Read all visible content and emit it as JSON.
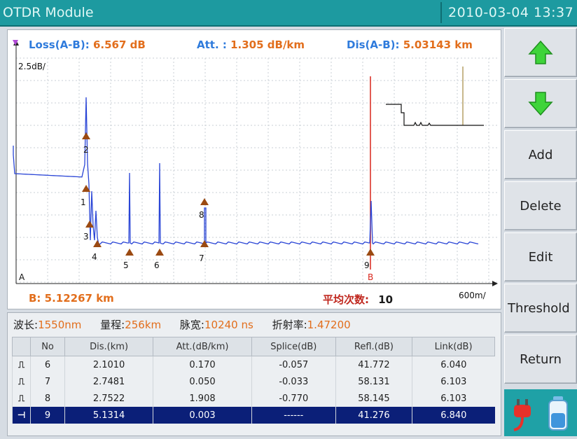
{
  "titlebar": {
    "title": "OTDR Module",
    "datetime": "2010-03-04  13:37"
  },
  "measure": {
    "loss_label": "Loss(A-B):",
    "loss_value": "6.567 dB",
    "att_label": "Att.  :",
    "att_value": "1.305 dB/km",
    "dis_label": "Dis(A-B):",
    "dis_value": "5.03143 km"
  },
  "scale": {
    "y": "2.5dB/",
    "x": "600m/"
  },
  "cursor": {
    "a_label": "A",
    "b_label": "B",
    "b_readout": "B:   5.12267   km"
  },
  "average": {
    "label": "平均次数:",
    "value": "10"
  },
  "markers": [
    "2",
    "1",
    "3",
    "4",
    "5",
    "6",
    "7",
    "8",
    "9"
  ],
  "params": {
    "wave_label": "波长:",
    "wave_value": "1550nm",
    "range_label": "量程:",
    "range_value": "256km",
    "pulse_label": "脉宽:",
    "pulse_value": "10240 ns",
    "ior_label": "折射率:",
    "ior_value": "1.47200"
  },
  "table": {
    "columns": [
      "",
      "No",
      "Dis.(km)",
      "Att.(dB/km)",
      "Splice(dB)",
      "Refl.(dB)",
      "Link(dB)"
    ],
    "rows": [
      {
        "icon": "⎍",
        "no": "6",
        "dis": "2.1010",
        "att": "0.170",
        "splice": "-0.057",
        "refl": "41.772",
        "link": "6.040"
      },
      {
        "icon": "⎍",
        "no": "7",
        "dis": "2.7481",
        "att": "0.050",
        "splice": "-0.033",
        "refl": "58.131",
        "link": "6.103"
      },
      {
        "icon": "⎍",
        "no": "8",
        "dis": "2.7522",
        "att": "1.908",
        "splice": "-0.770",
        "refl": "58.145",
        "link": "6.103"
      },
      {
        "icon": "⊣",
        "no": "9",
        "dis": "5.1314",
        "att": "0.003",
        "splice": "------",
        "refl": "41.276",
        "link": "6.840"
      }
    ]
  },
  "sidebar": {
    "add": "Add",
    "delete": "Delete",
    "edit": "Edit",
    "threshold": "Threshold",
    "return": "Return"
  },
  "colors": {
    "trace": "#2a45d6",
    "cursor_b": "#d9261c",
    "marker": "#9b4a12",
    "title_bg": "#1d9aa0"
  }
}
